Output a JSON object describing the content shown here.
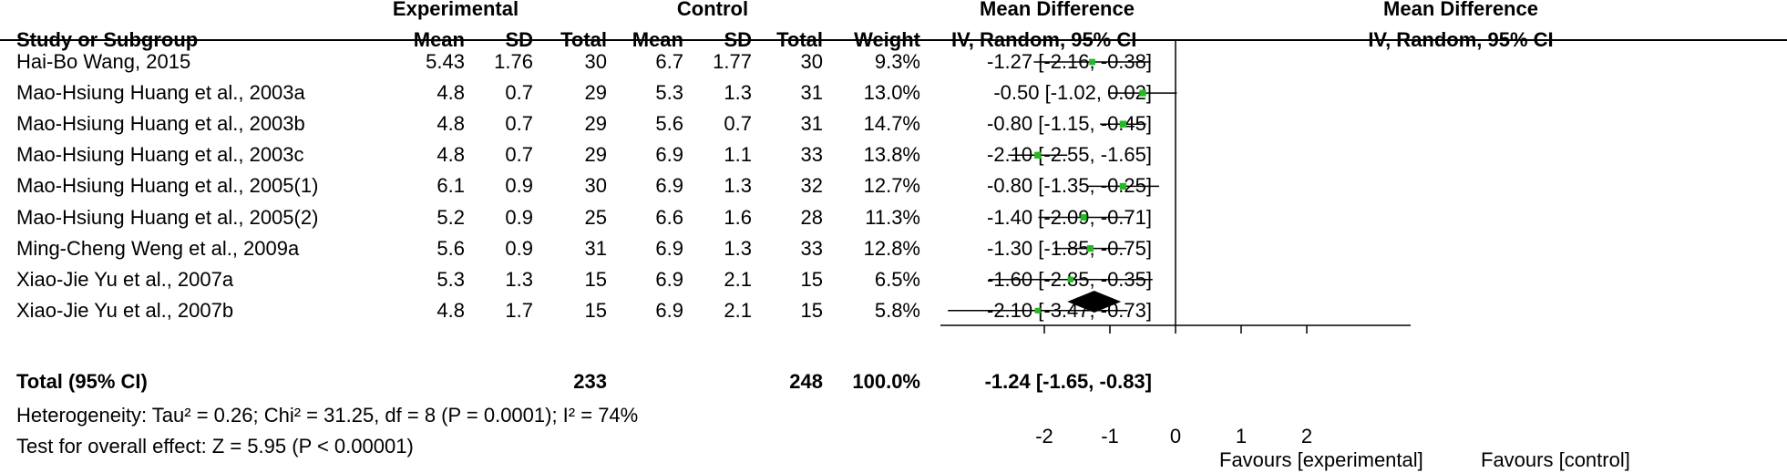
{
  "header": {
    "experimental": "Experimental",
    "control": "Control",
    "mean_difference_left": "Mean Difference",
    "mean_difference_right": "Mean Difference",
    "study_col": "Study or Subgroup",
    "exp_mean": "Mean",
    "exp_sd": "SD",
    "exp_total": "Total",
    "ctl_mean": "Mean",
    "ctl_sd": "SD",
    "ctl_total": "Total",
    "weight": "Weight",
    "method_left": "IV, Random, 95% CI",
    "method_right": "IV, Random, 95% CI"
  },
  "studies": [
    {
      "name": "Hai-Bo Wang, 2015",
      "e_mean": "5.43",
      "e_sd": "1.76",
      "e_total": "30",
      "c_mean": "6.7",
      "c_sd": "1.77",
      "c_total": "30",
      "weight": "9.3%",
      "ci": "-1.27 [-2.16, -0.38]"
    },
    {
      "name": "Mao-Hsiung Huang et al., 2003a",
      "e_mean": "4.8",
      "e_sd": "0.7",
      "e_total": "29",
      "c_mean": "5.3",
      "c_sd": "1.3",
      "c_total": "31",
      "weight": "13.0%",
      "ci": "-0.50 [-1.02, 0.02]"
    },
    {
      "name": "Mao-Hsiung Huang et al., 2003b",
      "e_mean": "4.8",
      "e_sd": "0.7",
      "e_total": "29",
      "c_mean": "5.6",
      "c_sd": "0.7",
      "c_total": "31",
      "weight": "14.7%",
      "ci": "-0.80 [-1.15, -0.45]"
    },
    {
      "name": "Mao-Hsiung Huang et al., 2003c",
      "e_mean": "4.8",
      "e_sd": "0.7",
      "e_total": "29",
      "c_mean": "6.9",
      "c_sd": "1.1",
      "c_total": "33",
      "weight": "13.8%",
      "ci": "-2.10 [-2.55, -1.65]"
    },
    {
      "name": "Mao-Hsiung Huang et al., 2005(1)",
      "e_mean": "6.1",
      "e_sd": "0.9",
      "e_total": "30",
      "c_mean": "6.9",
      "c_sd": "1.3",
      "c_total": "32",
      "weight": "12.7%",
      "ci": "-0.80 [-1.35, -0.25]"
    },
    {
      "name": "Mao-Hsiung Huang et al., 2005(2)",
      "e_mean": "5.2",
      "e_sd": "0.9",
      "e_total": "25",
      "c_mean": "6.6",
      "c_sd": "1.6",
      "c_total": "28",
      "weight": "11.3%",
      "ci": "-1.40 [-2.09, -0.71]"
    },
    {
      "name": "Ming-Cheng Weng et al., 2009a",
      "e_mean": "5.6",
      "e_sd": "0.9",
      "e_total": "31",
      "c_mean": "6.9",
      "c_sd": "1.3",
      "c_total": "33",
      "weight": "12.8%",
      "ci": "-1.30 [-1.85, -0.75]"
    },
    {
      "name": "Xiao-Jie Yu et al., 2007a",
      "e_mean": "5.3",
      "e_sd": "1.3",
      "e_total": "15",
      "c_mean": "6.9",
      "c_sd": "2.1",
      "c_total": "15",
      "weight": "6.5%",
      "ci": "-1.60 [-2.85, -0.35]"
    },
    {
      "name": "Xiao-Jie Yu et al., 2007b",
      "e_mean": "4.8",
      "e_sd": "1.7",
      "e_total": "15",
      "c_mean": "6.9",
      "c_sd": "2.1",
      "c_total": "15",
      "weight": "5.8%",
      "ci": "-2.10 [-3.47, -0.73]"
    }
  ],
  "total": {
    "label": "Total (95% CI)",
    "e_total": "233",
    "c_total": "248",
    "weight": "100.0%",
    "ci": "-1.24 [-1.65, -0.83]"
  },
  "heterogeneity": "Heterogeneity: Tau² = 0.26; Chi² = 31.25, df = 8 (P = 0.0001); I² = 74%",
  "overall_effect": "Test for overall effect: Z = 5.95 (P < 0.00001)",
  "axis": {
    "ticks": [
      "-2",
      "-1",
      "0",
      "1",
      "2"
    ],
    "favours_left": "Favours [experimental]",
    "favours_right": "Favours [control]"
  },
  "colors": {
    "marker": "#22bb22",
    "line": "#000000"
  },
  "chart_data": {
    "type": "scatter",
    "x_axis_values": [
      -2,
      -1,
      0,
      1,
      2
    ],
    "studies": [
      {
        "name": "Hai-Bo Wang, 2015",
        "md": -1.27,
        "lo": -2.16,
        "hi": -0.38,
        "weight": 9.3
      },
      {
        "name": "Mao-Hsiung Huang et al., 2003a",
        "md": -0.5,
        "lo": -1.02,
        "hi": 0.02,
        "weight": 13.0
      },
      {
        "name": "Mao-Hsiung Huang et al., 2003b",
        "md": -0.8,
        "lo": -1.15,
        "hi": -0.45,
        "weight": 14.7
      },
      {
        "name": "Mao-Hsiung Huang et al., 2003c",
        "md": -2.1,
        "lo": -2.55,
        "hi": -1.65,
        "weight": 13.8
      },
      {
        "name": "Mao-Hsiung Huang et al., 2005(1)",
        "md": -0.8,
        "lo": -1.35,
        "hi": -0.25,
        "weight": 12.7
      },
      {
        "name": "Mao-Hsiung Huang et al., 2005(2)",
        "md": -1.4,
        "lo": -2.09,
        "hi": -0.71,
        "weight": 11.3
      },
      {
        "name": "Ming-Cheng Weng et al., 2009a",
        "md": -1.3,
        "lo": -1.85,
        "hi": -0.75,
        "weight": 12.8
      },
      {
        "name": "Xiao-Jie Yu et al., 2007a",
        "md": -1.6,
        "lo": -2.85,
        "hi": -0.35,
        "weight": 6.5
      },
      {
        "name": "Xiao-Jie Yu et al., 2007b",
        "md": -2.1,
        "lo": -3.47,
        "hi": -0.73,
        "weight": 5.8
      }
    ],
    "pooled": {
      "md": -1.24,
      "lo": -1.65,
      "hi": -0.83
    }
  }
}
